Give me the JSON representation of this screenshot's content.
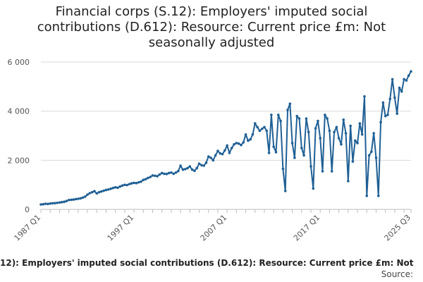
{
  "chart_data": {
    "type": "line",
    "title": "Financial corps (S.12): Employers' imputed social contributions (D.612): Resource: Current price £m: Not seasonally adjusted",
    "legend_text": "12): Employers' imputed social contributions (D.612): Resource: Current price £m: Not",
    "source_text": "Source:",
    "xlabel": "",
    "ylabel": "",
    "ylim": [
      0,
      6000
    ],
    "yticks": [
      0,
      2000,
      4000,
      6000
    ],
    "ytick_labels": [
      "0",
      "2 000",
      "4 000",
      "6 000"
    ],
    "xtick_labels": [
      "1987 Q1",
      "1997 Q1",
      "2007 Q1",
      "2017 Q1",
      "2025 Q3"
    ],
    "grid": true,
    "colors": {
      "series": "#206095",
      "grid": "#d9d9d9",
      "axis": "#bdbdbd",
      "text": "#222222"
    },
    "series": [
      {
        "name": "",
        "x_start": "1987 Q1",
        "frequency": "quarterly",
        "values": [
          200,
          210,
          230,
          220,
          240,
          250,
          255,
          265,
          280,
          295,
          310,
          340,
          380,
          390,
          400,
          420,
          430,
          450,
          480,
          520,
          600,
          660,
          700,
          740,
          650,
          700,
          730,
          760,
          790,
          810,
          840,
          870,
          900,
          880,
          930,
          970,
          1000,
          990,
          1030,
          1060,
          1080,
          1070,
          1100,
          1130,
          1200,
          1230,
          1280,
          1320,
          1380,
          1370,
          1350,
          1420,
          1480,
          1450,
          1440,
          1480,
          1500,
          1450,
          1500,
          1560,
          1780,
          1620,
          1640,
          1680,
          1750,
          1620,
          1570,
          1680,
          1860,
          1800,
          1780,
          1900,
          2150,
          2100,
          2000,
          2200,
          2380,
          2280,
          2250,
          2400,
          2600,
          2300,
          2500,
          2650,
          2700,
          2680,
          2620,
          2730,
          3050,
          2800,
          2850,
          3050,
          3500,
          3350,
          3200,
          3280,
          3350,
          3200,
          2300,
          3850,
          2550,
          2330,
          3850,
          3600,
          1650,
          750,
          4050,
          4300,
          2700,
          2100,
          3800,
          3700,
          2500,
          2200,
          3700,
          3150,
          1750,
          850,
          3300,
          3600,
          2900,
          1550,
          3850,
          3700,
          3200,
          1550,
          3150,
          3350,
          2900,
          2650,
          3650,
          3100,
          1150,
          3400,
          1950,
          2800,
          2700,
          3500,
          3050,
          4600,
          550,
          2200,
          2350,
          3100,
          2100,
          550,
          3550,
          4350,
          3800,
          3850,
          4500,
          5300,
          4550,
          3900,
          4950,
          4800,
          5300,
          5250,
          5450,
          5620
        ]
      }
    ]
  }
}
